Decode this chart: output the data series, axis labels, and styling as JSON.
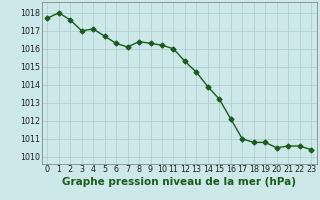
{
  "x": [
    0,
    1,
    2,
    3,
    4,
    5,
    6,
    7,
    8,
    9,
    10,
    11,
    12,
    13,
    14,
    15,
    16,
    17,
    18,
    19,
    20,
    21,
    22,
    23
  ],
  "y": [
    1017.7,
    1018.0,
    1017.6,
    1017.0,
    1017.1,
    1016.7,
    1016.3,
    1016.1,
    1016.4,
    1016.3,
    1016.2,
    1016.0,
    1015.3,
    1014.7,
    1013.9,
    1013.2,
    1012.1,
    1011.0,
    1010.8,
    1010.8,
    1010.5,
    1010.6,
    1010.6,
    1010.4
  ],
  "line_color": "#1a5c1a",
  "marker": "D",
  "marker_size": 2.5,
  "bg_color": "#cce8e8",
  "grid_color": "#aacccc",
  "xlabel": "Graphe pression niveau de la mer (hPa)",
  "xlabel_fontsize": 7.5,
  "ylabel_ticks": [
    1010,
    1011,
    1012,
    1013,
    1014,
    1015,
    1016,
    1017,
    1018
  ],
  "ylim": [
    1009.6,
    1018.6
  ],
  "xlim": [
    -0.5,
    23.5
  ],
  "xticks": [
    0,
    1,
    2,
    3,
    4,
    5,
    6,
    7,
    8,
    9,
    10,
    11,
    12,
    13,
    14,
    15,
    16,
    17,
    18,
    19,
    20,
    21,
    22,
    23
  ],
  "tick_fontsize": 5.8,
  "line_width": 1.0
}
